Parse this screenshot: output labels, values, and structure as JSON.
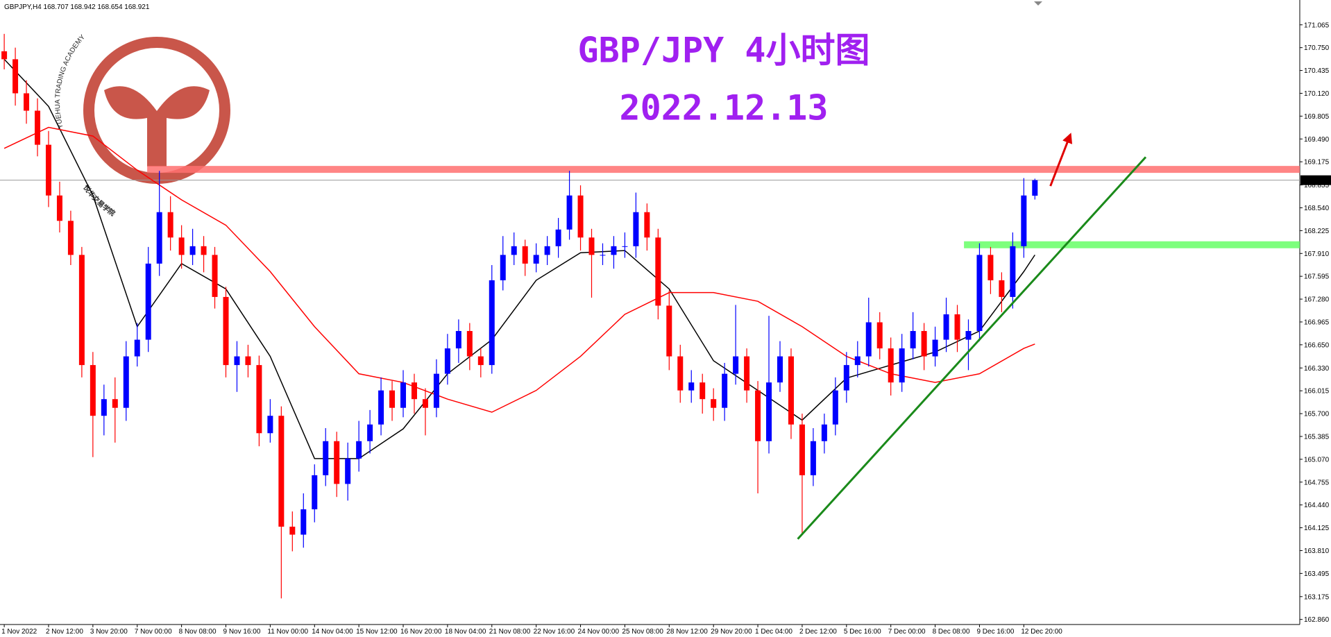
{
  "chart_data": {
    "type": "candlestick",
    "title": "GBP/JPY 4小时图",
    "subtitle": "2022.12.13",
    "header": "GBPJPY,H4  168.707 168.942 168.654 168.921",
    "watermark": {
      "arc_text": "YUEHUA TRADING ACADEMY",
      "chinese": "悦华交易学院"
    },
    "up_color": "#0000ff",
    "down_color": "#ff0000",
    "categories": [
      "1 Nov 2022",
      null,
      null,
      null,
      "2 Nov 12:00",
      null,
      null,
      null,
      "3 Nov 20:00",
      null,
      null,
      null,
      "7 Nov 00:00",
      null,
      null,
      null,
      "8 Nov 08:00",
      null,
      null,
      null,
      "9 Nov 16:00",
      null,
      null,
      null,
      "11 Nov 00:00",
      null,
      null,
      null,
      "14 Nov 04:00",
      null,
      null,
      null,
      "15 Nov 12:00",
      null,
      null,
      null,
      "16 Nov 20:00",
      null,
      null,
      null,
      "18 Nov 04:00",
      null,
      null,
      null,
      "21 Nov 08:00",
      null,
      null,
      null,
      "22 Nov 16:00",
      null,
      null,
      null,
      "24 Nov 00:00",
      null,
      null,
      null,
      "25 Nov 08:00",
      null,
      null,
      null,
      "28 Nov 12:00",
      null,
      null,
      null,
      "29 Nov 20:00",
      null,
      null,
      null,
      "1 Dec 04:00",
      null,
      null,
      null,
      "2 Dec 12:00",
      null,
      null,
      null,
      "5 Dec 16:00",
      null,
      null,
      null,
      "7 Dec 00:00",
      null,
      null,
      null,
      "8 Dec 08:00",
      null,
      null,
      null,
      "9 Dec 16:00",
      null,
      null,
      null,
      "12 Dec 20:00",
      null
    ],
    "open": [
      170.7,
      170.59,
      170.12,
      169.88,
      169.41,
      168.71,
      168.36,
      167.89,
      166.37,
      165.67,
      165.9,
      165.78,
      166.49,
      166.72,
      167.77,
      168.48,
      168.13,
      167.89,
      168.01,
      167.89,
      167.31,
      166.37,
      166.49,
      166.37,
      165.43,
      165.67,
      164.14,
      164.03,
      164.38,
      164.85,
      165.32,
      164.73,
      165.08,
      165.32,
      165.55,
      166.02,
      165.78,
      166.13,
      165.9,
      165.78,
      166.25,
      166.6,
      166.84,
      166.49,
      166.37,
      167.54,
      167.89,
      168.01,
      167.77,
      167.89,
      168.01,
      168.24,
      168.71,
      168.13,
      167.89,
      167.89,
      168.01,
      168.01,
      168.48,
      168.13,
      167.19,
      166.49,
      166.02,
      166.13,
      165.9,
      165.78,
      166.25,
      166.49,
      166.02,
      165.32,
      166.13,
      166.49,
      165.55,
      164.85,
      165.32,
      165.55,
      166.02,
      166.37,
      166.49,
      166.96,
      166.6,
      166.13,
      166.6,
      166.84,
      166.49,
      166.72,
      167.07,
      166.72,
      166.84,
      167.89,
      167.54,
      167.31,
      168.01,
      168.707
    ],
    "high": [
      170.94,
      170.75,
      170.3,
      170.05,
      169.6,
      168.9,
      168.5,
      168.0,
      166.55,
      166.1,
      166.2,
      166.7,
      166.95,
      168.0,
      169.05,
      168.7,
      168.3,
      168.25,
      168.15,
      168.0,
      167.45,
      166.7,
      166.65,
      166.5,
      165.9,
      165.8,
      164.35,
      164.6,
      165.0,
      165.5,
      165.45,
      165.3,
      165.6,
      165.75,
      166.2,
      166.15,
      166.3,
      166.25,
      166.05,
      166.45,
      166.8,
      167.0,
      166.95,
      166.6,
      167.75,
      168.15,
      168.2,
      168.1,
      168.05,
      168.15,
      168.4,
      169.05,
      168.85,
      168.25,
      168.05,
      168.15,
      168.2,
      168.75,
      168.6,
      168.25,
      167.4,
      166.65,
      166.3,
      166.25,
      166.05,
      166.4,
      167.2,
      166.6,
      166.15,
      167.05,
      166.7,
      166.6,
      165.7,
      165.5,
      165.7,
      166.2,
      166.55,
      166.7,
      167.3,
      167.1,
      166.75,
      166.8,
      167.1,
      166.95,
      166.9,
      167.3,
      167.2,
      167.0,
      168.05,
      168.0,
      167.65,
      168.2,
      168.95,
      168.942
    ],
    "low": [
      170.45,
      169.95,
      169.7,
      169.25,
      168.55,
      168.2,
      167.75,
      166.2,
      165.1,
      165.4,
      165.3,
      165.6,
      166.35,
      166.55,
      167.6,
      167.95,
      167.7,
      167.75,
      167.65,
      167.15,
      166.2,
      166.0,
      166.2,
      165.25,
      165.3,
      163.15,
      163.8,
      163.85,
      164.2,
      164.7,
      164.55,
      164.5,
      164.9,
      165.15,
      165.4,
      165.6,
      165.65,
      165.7,
      165.4,
      165.65,
      166.1,
      166.4,
      166.3,
      166.2,
      166.25,
      167.4,
      167.75,
      167.6,
      167.65,
      167.75,
      167.85,
      168.1,
      167.95,
      167.3,
      167.75,
      167.7,
      167.85,
      167.85,
      167.95,
      167.0,
      166.3,
      165.85,
      165.85,
      165.7,
      165.6,
      165.6,
      166.1,
      165.85,
      164.6,
      165.15,
      166.0,
      165.35,
      164.05,
      164.7,
      165.15,
      165.4,
      165.85,
      166.2,
      166.35,
      166.45,
      165.95,
      166.0,
      166.45,
      166.3,
      166.35,
      166.55,
      166.55,
      166.3,
      166.7,
      167.35,
      167.1,
      167.15,
      167.85,
      168.654
    ],
    "close": [
      170.59,
      170.12,
      169.88,
      169.41,
      168.71,
      168.36,
      167.89,
      166.37,
      165.67,
      165.9,
      165.78,
      166.49,
      166.72,
      167.77,
      168.48,
      168.13,
      167.89,
      168.01,
      167.89,
      167.31,
      166.37,
      166.49,
      166.37,
      165.43,
      165.67,
      164.14,
      164.03,
      164.38,
      164.85,
      165.32,
      164.73,
      165.08,
      165.32,
      165.55,
      166.02,
      165.78,
      166.13,
      165.9,
      165.78,
      166.25,
      166.6,
      166.84,
      166.49,
      166.37,
      167.54,
      167.89,
      168.01,
      167.77,
      167.89,
      168.01,
      168.24,
      168.71,
      168.13,
      167.89,
      167.89,
      168.01,
      168.01,
      168.48,
      168.13,
      167.19,
      166.49,
      166.02,
      166.13,
      165.9,
      165.78,
      166.25,
      166.49,
      166.02,
      165.32,
      166.13,
      166.49,
      165.55,
      164.85,
      165.32,
      165.55,
      166.02,
      166.37,
      166.49,
      166.96,
      166.6,
      166.13,
      166.6,
      166.84,
      166.49,
      166.72,
      167.07,
      166.72,
      166.84,
      167.89,
      167.54,
      167.31,
      168.01,
      168.71,
      168.921
    ],
    "moving_averages": [
      {
        "color": "#000000",
        "x": [
          0,
          4,
          8,
          12,
          16,
          20,
          24,
          28,
          32,
          36,
          40,
          44,
          48,
          52,
          56,
          60,
          64,
          68,
          72,
          76,
          80,
          84,
          88,
          92,
          93
        ],
        "values": [
          170.59,
          169.94,
          168.71,
          166.9,
          167.77,
          167.42,
          166.49,
          165.08,
          165.08,
          165.49,
          166.25,
          166.72,
          167.54,
          167.92,
          167.95,
          167.42,
          166.43,
          166.02,
          165.61,
          166.19,
          166.37,
          166.55,
          166.84,
          167.66,
          167.89
        ]
      },
      {
        "color": "#ff0000",
        "x": [
          0,
          4,
          8,
          12,
          16,
          20,
          24,
          28,
          32,
          36,
          40,
          44,
          48,
          52,
          56,
          60,
          64,
          68,
          72,
          76,
          80,
          84,
          88,
          92,
          93
        ],
        "values": [
          169.36,
          169.65,
          169.53,
          169.06,
          168.65,
          168.3,
          167.66,
          166.9,
          166.25,
          166.13,
          165.9,
          165.72,
          166.02,
          166.49,
          167.07,
          167.37,
          167.37,
          167.25,
          166.9,
          166.49,
          166.25,
          166.13,
          166.25,
          166.6,
          166.66
        ]
      }
    ],
    "levels": [
      {
        "value": 169.07,
        "x_start": 12.9,
        "color": "#ff7070"
      },
      {
        "value": 168.03,
        "x_start": 86.6,
        "color": "#66ff66"
      }
    ],
    "current_price": 168.921,
    "trendline": {
      "x": [
        71.6,
        103
      ],
      "y": [
        163.97,
        169.24
      ],
      "color": "#1a8a1a"
    },
    "arrow": {
      "x": [
        94.4,
        96.2
      ],
      "y": [
        168.84,
        169.55
      ],
      "color": "#e00000"
    },
    "ylim": [
      162.79,
      171.35
    ],
    "yticks": [
      171.065,
      {
        "value": 170.75,
        "label": "170.750"
      },
      170.435,
      {
        "value": 170.12,
        "label": "170.120"
      },
      169.805,
      {
        "value": 169.49,
        "label": "169.490"
      },
      169.175,
      168.855,
      {
        "value": 168.54,
        "label": "168.540"
      },
      168.225,
      {
        "value": 167.91,
        "label": "167.910"
      },
      167.595,
      {
        "value": 167.28,
        "label": "167.280"
      },
      166.965,
      {
        "value": 166.65,
        "label": "166.650"
      },
      {
        "value": 166.33,
        "label": "166.330"
      },
      166.015,
      {
        "value": 165.7,
        "label": "165.700"
      },
      165.385,
      {
        "value": 165.07,
        "label": "165.070"
      },
      164.755,
      {
        "value": 164.44,
        "label": "164.440"
      },
      164.125,
      {
        "value": 163.81,
        "label": "163.810"
      },
      163.495,
      163.175,
      {
        "value": 162.86,
        "label": "162.860"
      }
    ]
  }
}
